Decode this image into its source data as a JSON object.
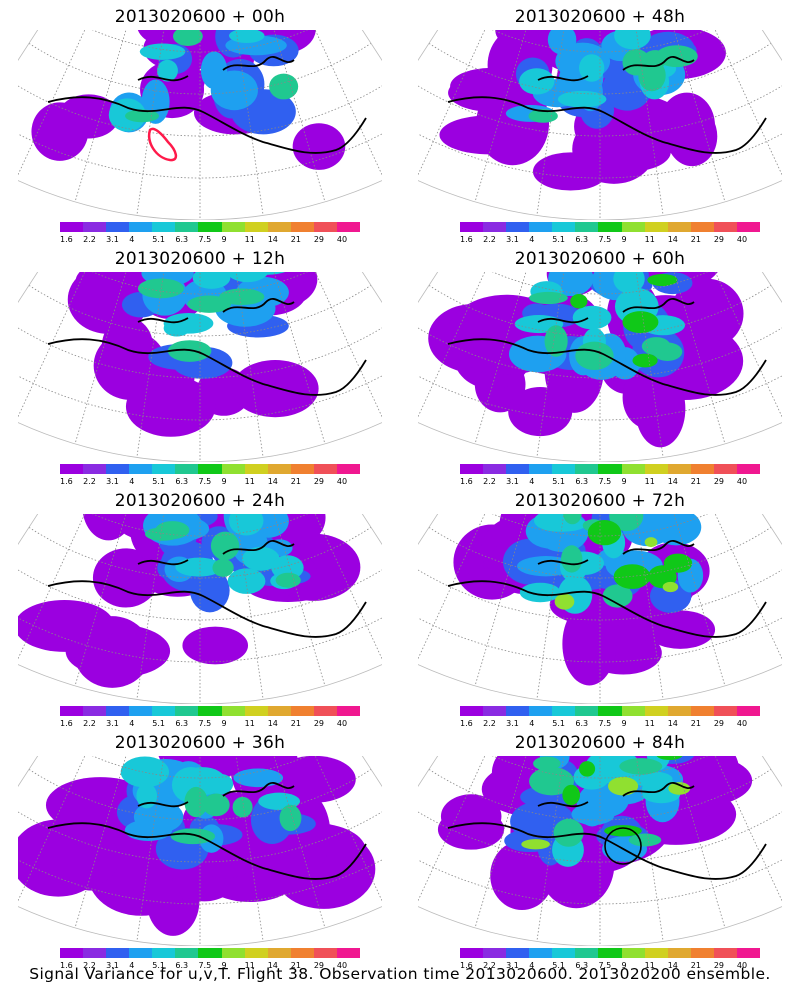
{
  "panels": [
    {
      "title": "2013020600 + 00h",
      "intensity": 0.35,
      "spread": 0.45,
      "highlight_circle": false,
      "red_contour": true
    },
    {
      "title": "2013020600 + 48h",
      "intensity": 0.45,
      "spread": 0.85,
      "highlight_circle": false,
      "red_contour": false
    },
    {
      "title": "2013020600 + 12h",
      "intensity": 0.4,
      "spread": 0.6,
      "highlight_circle": false,
      "red_contour": false
    },
    {
      "title": "2013020600 + 60h",
      "intensity": 0.55,
      "spread": 0.9,
      "highlight_circle": false,
      "red_contour": false
    },
    {
      "title": "2013020600 + 24h",
      "intensity": 0.4,
      "spread": 0.7,
      "highlight_circle": false,
      "red_contour": false
    },
    {
      "title": "2013020600 + 72h",
      "intensity": 0.65,
      "spread": 0.9,
      "highlight_circle": false,
      "red_contour": false
    },
    {
      "title": "2013020600 + 36h",
      "intensity": 0.4,
      "spread": 0.85,
      "highlight_circle": false,
      "red_contour": false
    },
    {
      "title": "2013020600 + 84h",
      "intensity": 0.75,
      "spread": 0.95,
      "highlight_circle": true,
      "red_contour": false
    }
  ],
  "colorbar": {
    "colors": [
      "#9b00e0",
      "#8a2be2",
      "#3060f0",
      "#1ea0f0",
      "#18c8d8",
      "#20c890",
      "#10c818",
      "#90e030",
      "#d0d020",
      "#e0a830",
      "#f08030",
      "#f05058",
      "#f01890"
    ],
    "labels": [
      "1.6",
      "2.2",
      "3.1",
      "4",
      "5.1",
      "6.3",
      "7.5",
      "9",
      "11",
      "14",
      "21",
      "29",
      "40"
    ]
  },
  "footer": "Signal Variance for u,v,T. Flight 38. Observation time 2013020600. 2013020200 ensemble."
}
